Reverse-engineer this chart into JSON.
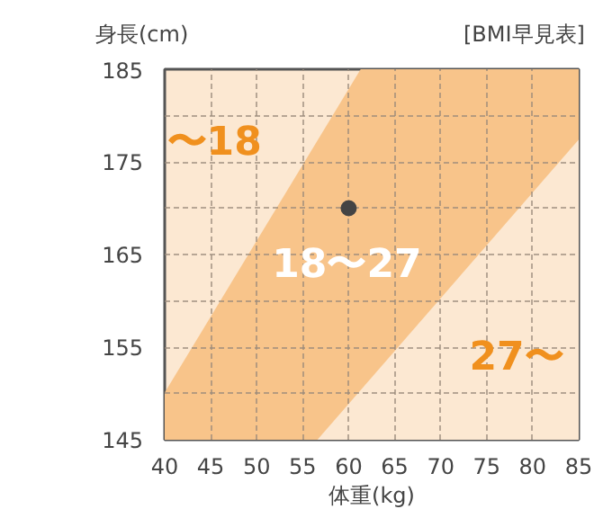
{
  "chart_data": {
    "type": "area",
    "title": "[BMI早見表]",
    "xlabel": "体重(kg)",
    "ylabel": "身長(cm)",
    "xlim": [
      40,
      85
    ],
    "ylim": [
      145,
      185
    ],
    "xticks": [
      40,
      45,
      50,
      55,
      60,
      65,
      70,
      75,
      80,
      85
    ],
    "yticks": [
      145,
      {
        "value": 150,
        "label": null
      },
      155,
      {
        "value": 160,
        "label": null
      },
      165,
      {
        "value": 170,
        "label": null
      },
      175,
      {
        "value": 180,
        "label": null
      },
      185
    ],
    "grid": true,
    "series": [
      {
        "color": "#f8c48a",
        "x": [
          40,
          61.3,
          85
        ],
        "values": [
          150.1,
          185,
          185
        ]
      },
      {
        "color": "#fce8d2",
        "x": [
          56.6,
          85
        ],
        "values": [
          145,
          177.4
        ]
      },
      {
        "type": "scatter",
        "color": "#444444",
        "x": [
          60
        ],
        "values": [
          170
        ]
      }
    ],
    "annotations": [
      "〜18",
      "18〜27",
      "27〜"
    ]
  }
}
